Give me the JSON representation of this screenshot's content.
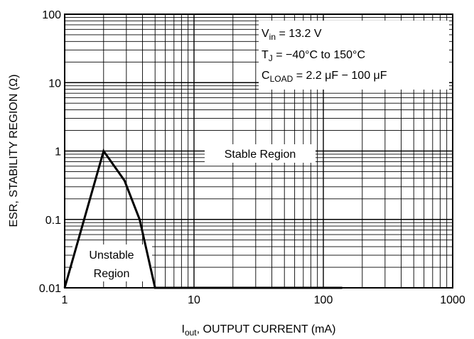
{
  "chart_data": {
    "type": "line",
    "title": "",
    "xlabel_main": "I",
    "xlabel_sub": "out",
    "xlabel_rest": ", OUTPUT CURRENT (mA)",
    "ylabel": "ESR, STABILITY REGION (Ω)",
    "xscale": "log",
    "yscale": "log",
    "xlim": [
      1,
      1000
    ],
    "ylim": [
      0.01,
      100
    ],
    "grid": true,
    "x_tick_labels": [
      "1",
      "10",
      "100",
      "1000"
    ],
    "y_tick_labels": [
      "0.01",
      "0.1",
      "1",
      "10",
      "100"
    ],
    "series": [
      {
        "name": "",
        "x": [
          1,
          2,
          2.9,
          3.8,
          5,
          140
        ],
        "y": [
          0.01,
          1,
          0.37,
          0.1,
          0.01,
          0.01
        ]
      }
    ],
    "annotations": {
      "box_line1_main": "V",
      "box_line1_sub": "in",
      "box_line1_rest": " = 13.2 V",
      "box_line2_main": "T",
      "box_line2_sub": "J",
      "box_line2_rest": " = −40°C to 150°C",
      "box_line3_main": "C",
      "box_line3_sub": "LOAD",
      "box_line3_rest": " = 2.2 μF − 100 μF",
      "stable_label": "Stable Region",
      "unstable_line1": "Unstable",
      "unstable_line2": "Region"
    }
  }
}
